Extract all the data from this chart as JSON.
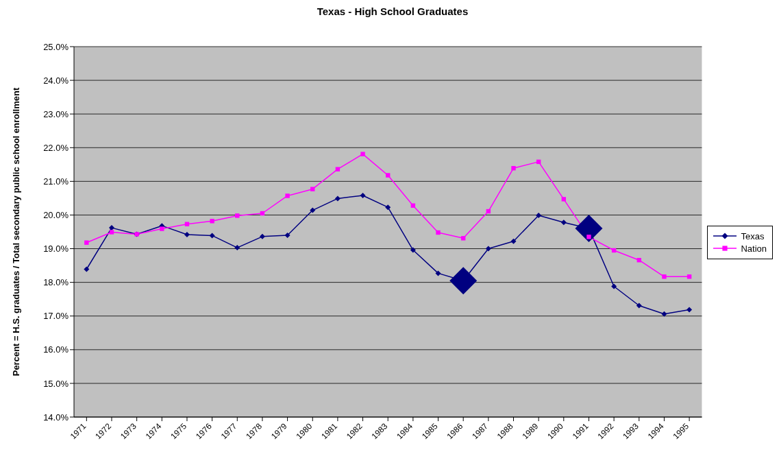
{
  "chart_data": {
    "type": "line",
    "title": "Texas - High School Graduates",
    "ylabel": "Percent = H.S. graduates / Total secondary public school enrollment",
    "categories": [
      "1971",
      "1972",
      "1973",
      "1974",
      "1975",
      "1976",
      "1977",
      "1978",
      "1979",
      "1980",
      "1981",
      "1982",
      "1983",
      "1984",
      "1985",
      "1986",
      "1987",
      "1988",
      "1989",
      "1990",
      "1991",
      "1992",
      "1993",
      "1994",
      "1995"
    ],
    "series": [
      {
        "name": "Texas",
        "color": "#000080",
        "marker": "diamond",
        "values": [
          18.39,
          19.62,
          19.43,
          19.68,
          19.42,
          19.39,
          19.03,
          19.36,
          19.4,
          20.14,
          20.49,
          20.58,
          20.23,
          18.96,
          18.27,
          18.05,
          19.0,
          19.22,
          19.99,
          19.78,
          19.6,
          17.88,
          17.31,
          17.06,
          17.19
        ]
      },
      {
        "name": "Nation",
        "color": "#ff00ff",
        "marker": "square",
        "values": [
          19.18,
          19.49,
          19.43,
          19.59,
          19.73,
          19.82,
          19.98,
          20.05,
          20.57,
          20.77,
          21.36,
          21.81,
          21.18,
          20.28,
          19.48,
          19.31,
          20.11,
          21.39,
          21.58,
          20.47,
          19.35,
          18.95,
          18.66,
          18.17,
          18.17
        ]
      },
      {
        "type": "scatter",
        "color": "#000080",
        "marker": "diamond",
        "values": [
          null,
          null,
          null,
          null,
          null,
          null,
          null,
          null,
          null,
          null,
          null,
          null,
          null,
          null,
          null,
          18.05,
          null,
          null,
          null,
          null,
          19.6,
          null,
          null,
          null,
          null
        ]
      }
    ],
    "ylim": [
      14,
      25
    ],
    "yticks": [
      {
        "value": 14,
        "label": "14.0%"
      },
      {
        "value": 15,
        "label": "15.0%"
      },
      {
        "value": 16,
        "label": "16.0%"
      },
      {
        "value": 17,
        "label": "17.0%"
      },
      {
        "value": 18,
        "label": "18.0%"
      },
      {
        "value": 19,
        "label": "19.0%"
      },
      {
        "value": 20,
        "label": "20.0%"
      },
      {
        "value": 21,
        "label": "21.0%"
      },
      {
        "value": 22,
        "label": "22.0%"
      },
      {
        "value": 23,
        "label": "23.0%"
      },
      {
        "value": 24,
        "label": "24.0%"
      },
      {
        "value": 25,
        "label": "25.0%"
      }
    ],
    "grid": "y",
    "legend": "right",
    "line_style": "solid"
  }
}
